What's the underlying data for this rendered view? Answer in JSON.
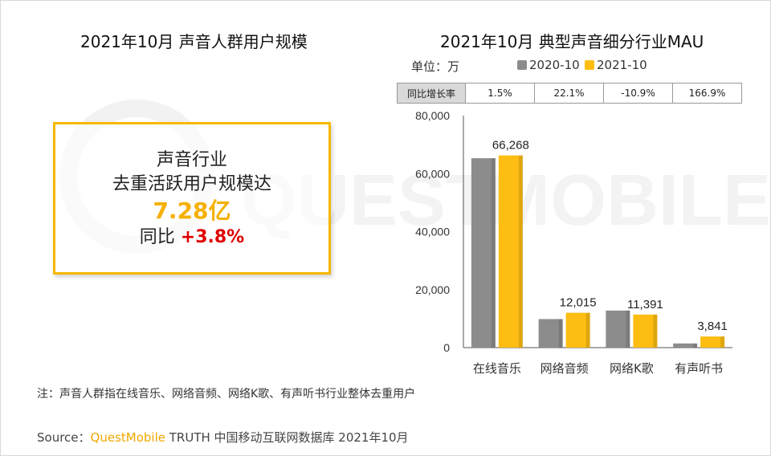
{
  "watermark_text": "QUESTMOBILE",
  "left": {
    "title": "2021年10月 声音人群用户规模",
    "line1": "声音行业",
    "line2": "去重活跃用户规模达",
    "big_value": "7.28亿",
    "yoy_prefix": "同比 ",
    "yoy_value": "+3.8%"
  },
  "right": {
    "title": "2021年10月  典型声音细分行业MAU",
    "unit": "单位：万",
    "growth_header": "同比增长率",
    "growth": [
      "1.5%",
      "22.1%",
      "-10.9%",
      "166.9%"
    ]
  },
  "colors": {
    "series_2020": "#8c8c8c",
    "series_2021": "#fdbd12",
    "box_border": "#f5b800",
    "positive": "#e00000"
  },
  "chart_data": {
    "type": "bar",
    "title": "2021年10月  典型声音细分行业MAU",
    "ylabel": "单位：万",
    "xlabel": "",
    "categories": [
      "在线音乐",
      "网络音频",
      "网络K歌",
      "有声听书"
    ],
    "series": [
      {
        "name": "2020-10",
        "values": [
          65300,
          9840,
          12780,
          1440
        ]
      },
      {
        "name": "2021-10",
        "values": [
          66268,
          12015,
          11391,
          3841
        ]
      }
    ],
    "data_labels": [
      "66,268",
      "12,015",
      "11,391",
      "3,841"
    ],
    "yticks": [
      "0",
      "20,000",
      "40,000",
      "60,000",
      "80,000"
    ],
    "ytick_values": [
      0,
      20000,
      40000,
      60000,
      80000
    ],
    "ylim": [
      0,
      80000
    ],
    "legend": "top"
  },
  "footer": {
    "note": "注：声音人群指在线音乐、网络音频、网络K歌、有声听书行业整体去重用户",
    "source_prefix": "Source：",
    "source_brand": "QuestMobile",
    "source_rest": " TRUTH 中国移动互联网数据库 2021年10月"
  }
}
